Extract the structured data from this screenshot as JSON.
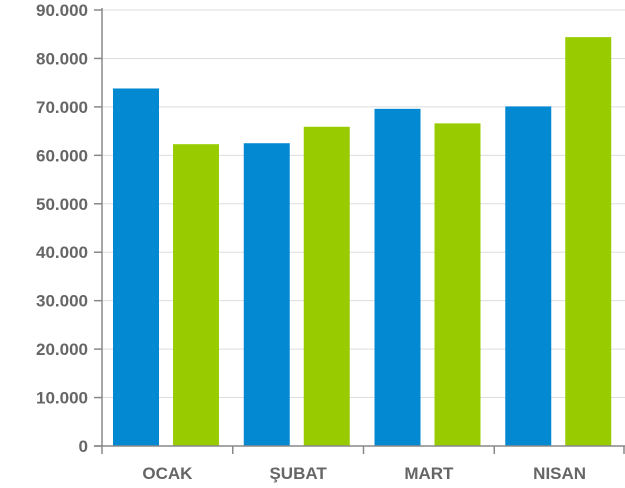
{
  "chart_data": {
    "type": "bar",
    "categories": [
      "OCAK",
      "ŞUBAT",
      "MART",
      "NISAN"
    ],
    "series": [
      {
        "values": [
          73800,
          62500,
          69600,
          70100
        ],
        "color": "#0389d1"
      },
      {
        "values": [
          62300,
          65900,
          66600,
          84400
        ],
        "color": "#99cc00"
      }
    ],
    "ylim": [
      0,
      90000
    ],
    "yticks": [
      {
        "value": 0,
        "label": "0"
      },
      {
        "value": 10000,
        "label": "10.000"
      },
      {
        "value": 20000,
        "label": "20.000"
      },
      {
        "value": 30000,
        "label": "30.000"
      },
      {
        "value": 40000,
        "label": "40.000"
      },
      {
        "value": 50000,
        "label": "50.000"
      },
      {
        "value": 60000,
        "label": "60.000"
      },
      {
        "value": 70000,
        "label": "70.000"
      },
      {
        "value": 80000,
        "label": "80.000"
      },
      {
        "value": 90000,
        "label": "90.000"
      }
    ],
    "grid": true,
    "legend": "none"
  }
}
